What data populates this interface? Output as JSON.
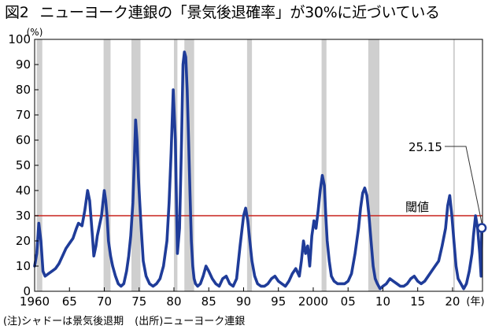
{
  "title": {
    "figure_no": "図2",
    "text": "ニューヨーク連銀の「景気後退確率」が30%に近づいている"
  },
  "footnote": {
    "note": "(注)シャドーは景気後退期",
    "source": "(出所)ニューヨーク連銀"
  },
  "colors": {
    "series": "#1f3c99",
    "threshold": "#c8231e",
    "recession_shade": "#cfcfcf",
    "axis": "#000000"
  },
  "chart_data": {
    "type": "line",
    "title": "ニューヨーク連銀の「景気後退確率」が30%に近づいている",
    "y_unit": "(%)",
    "x_unit": "(年)",
    "ylim": [
      0,
      100
    ],
    "xlim": [
      1960,
      2024.3
    ],
    "y_ticks": [
      0,
      10,
      20,
      30,
      40,
      50,
      60,
      70,
      80,
      90,
      100
    ],
    "x_ticks": [
      {
        "value": 1960,
        "label": "1960"
      },
      {
        "value": 1965,
        "label": "65"
      },
      {
        "value": 1970,
        "label": "70"
      },
      {
        "value": 1975,
        "label": "75"
      },
      {
        "value": 1980,
        "label": "80"
      },
      {
        "value": 1985,
        "label": "85"
      },
      {
        "value": 1990,
        "label": "90"
      },
      {
        "value": 1995,
        "label": "95"
      },
      {
        "value": 2000,
        "label": "2000"
      },
      {
        "value": 2005,
        "label": "05"
      },
      {
        "value": 2010,
        "label": "10"
      },
      {
        "value": 2015,
        "label": "15"
      },
      {
        "value": 2020,
        "label": "20"
      }
    ],
    "grid": false,
    "recessions": [
      [
        1960.3,
        1961.1
      ],
      [
        1969.9,
        1970.9
      ],
      [
        1973.9,
        1975.2
      ],
      [
        1980.0,
        1980.5
      ],
      [
        1981.5,
        1982.9
      ],
      [
        1990.5,
        1991.2
      ],
      [
        2001.2,
        2001.9
      ],
      [
        2007.9,
        2009.5
      ],
      [
        2020.1,
        2020.3
      ]
    ],
    "threshold": {
      "value": 30,
      "label": "閾値"
    },
    "latest": {
      "x": 2024.2,
      "y": 25.15,
      "label": "25.15"
    },
    "series": [
      {
        "x": [
          1960,
          1960.3,
          1960.6,
          1960.9,
          1961.2,
          1961.5,
          1962,
          1962.5,
          1963,
          1963.5,
          1964,
          1964.5,
          1965,
          1965.5,
          1966,
          1966.3,
          1966.8,
          1967.2,
          1967.6,
          1967.9,
          1968.3,
          1968.5,
          1968.8,
          1969,
          1969.3,
          1969.6,
          1969.8,
          1970,
          1970.2,
          1970.4,
          1970.6,
          1970.9,
          1971.2,
          1971.6,
          1972,
          1972.4,
          1972.8,
          1973.2,
          1973.5,
          1973.8,
          1974.1,
          1974.3,
          1974.5,
          1974.7,
          1974.9,
          1975.1,
          1975.3,
          1975.6,
          1976,
          1976.5,
          1977,
          1977.5,
          1978,
          1978.5,
          1979,
          1979.3,
          1979.6,
          1979.9,
          1980.2,
          1980.5,
          1980.8,
          1981.1,
          1981.3,
          1981.5,
          1981.7,
          1981.9,
          1982.1,
          1982.3,
          1982.5,
          1982.7,
          1982.9,
          1983.1,
          1983.4,
          1983.8,
          1984.2,
          1984.6,
          1985,
          1985.5,
          1986,
          1986.5,
          1987,
          1987.5,
          1988,
          1988.5,
          1989,
          1989.5,
          1990,
          1990.3,
          1990.6,
          1990.9,
          1991.2,
          1991.6,
          1992,
          1992.5,
          1993,
          1993.5,
          1994,
          1994.5,
          1995,
          1995.5,
          1996,
          1996.5,
          1997,
          1997.5,
          1998,
          1998.3,
          1998.6,
          1998.9,
          1999.2,
          1999.5,
          1999.8,
          2000.1,
          2000.4,
          2000.7,
          2001,
          2001.3,
          2001.6,
          2001.8,
          2002,
          2002.3,
          2002.6,
          2003,
          2003.5,
          2004,
          2004.5,
          2005,
          2005.5,
          2006,
          2006.5,
          2006.8,
          2007.1,
          2007.4,
          2007.7,
          2008,
          2008.3,
          2008.6,
          2008.9,
          2009.2,
          2009.6,
          2010,
          2010.5,
          2011,
          2011.5,
          2012,
          2012.5,
          2013,
          2013.5,
          2014,
          2014.5,
          2015,
          2015.5,
          2016,
          2016.5,
          2017,
          2017.5,
          2018,
          2018.5,
          2019,
          2019.3,
          2019.6,
          2019.9,
          2020.2,
          2020.5,
          2020.8,
          2021.2,
          2021.6,
          2022,
          2022.4,
          2022.8,
          2023,
          2023.3,
          2023.6,
          2023.9,
          2024.1,
          2024.2
        ],
        "y": [
          10,
          15,
          27,
          20,
          8,
          6,
          7,
          8,
          9,
          11,
          14,
          17,
          19,
          21,
          25,
          27,
          26,
          32,
          40,
          36,
          22,
          14,
          18,
          22,
          26,
          30,
          35,
          40,
          36,
          30,
          20,
          14,
          10,
          6,
          3,
          2,
          3,
          8,
          14,
          22,
          35,
          50,
          68,
          60,
          45,
          35,
          25,
          12,
          6,
          3,
          2,
          3,
          5,
          10,
          20,
          35,
          55,
          80,
          60,
          15,
          25,
          60,
          90,
          95,
          93,
          80,
          60,
          40,
          20,
          10,
          5,
          3,
          2,
          3,
          6,
          10,
          8,
          5,
          3,
          2,
          5,
          6,
          3,
          2,
          5,
          18,
          30,
          33,
          28,
          20,
          12,
          6,
          3,
          2,
          2,
          3,
          5,
          6,
          4,
          3,
          2,
          4,
          7,
          9,
          6,
          12,
          20,
          15,
          18,
          10,
          22,
          28,
          25,
          32,
          40,
          46,
          42,
          30,
          20,
          12,
          6,
          4,
          3,
          3,
          3,
          4,
          7,
          15,
          25,
          33,
          39,
          41,
          38,
          30,
          20,
          10,
          5,
          3,
          1,
          2,
          3,
          5,
          4,
          3,
          2,
          2,
          3,
          5,
          6,
          4,
          3,
          4,
          6,
          8,
          10,
          12,
          18,
          25,
          34,
          38,
          30,
          20,
          10,
          5,
          3,
          1,
          3,
          8,
          15,
          22,
          30,
          25,
          15,
          6,
          25.15
        ]
      }
    ]
  }
}
